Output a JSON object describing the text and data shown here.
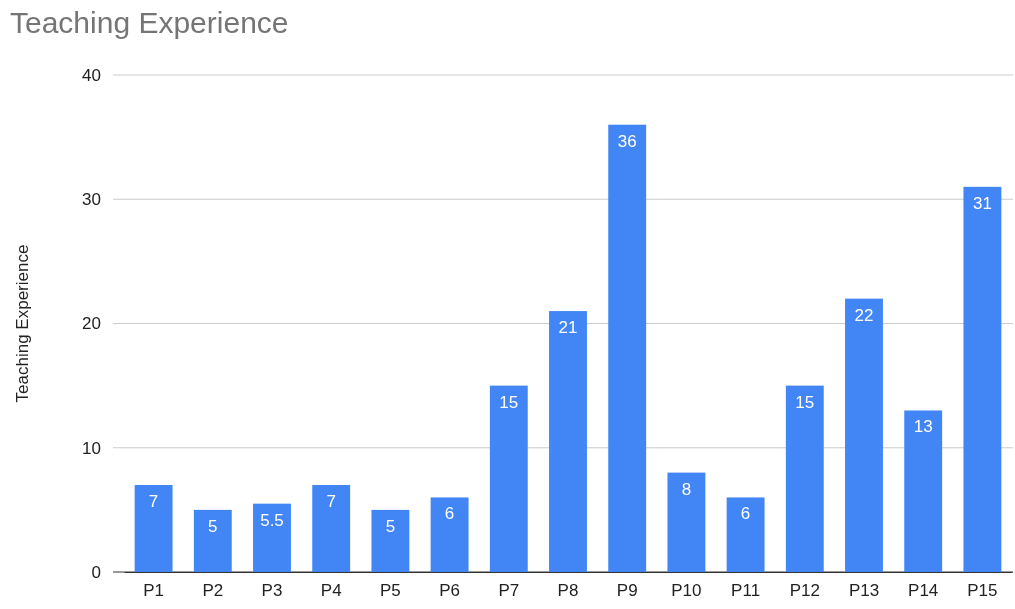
{
  "chart_data": {
    "type": "bar",
    "title": "Teaching Experience",
    "ylabel": "Teaching Experience",
    "categories": [
      "P1",
      "P2",
      "P3",
      "P4",
      "P5",
      "P6",
      "P7",
      "P8",
      "P9",
      "P10",
      "P11",
      "P12",
      "P13",
      "P14",
      "P15"
    ],
    "values": [
      7,
      5,
      5.5,
      7,
      5,
      6,
      15,
      21,
      36,
      8,
      6,
      15,
      22,
      13,
      31
    ],
    "color": "#4285f4",
    "ylim": [
      0,
      40
    ],
    "yticks": [
      0,
      10,
      20,
      30,
      40
    ],
    "grid": "y",
    "data_labels": true
  }
}
